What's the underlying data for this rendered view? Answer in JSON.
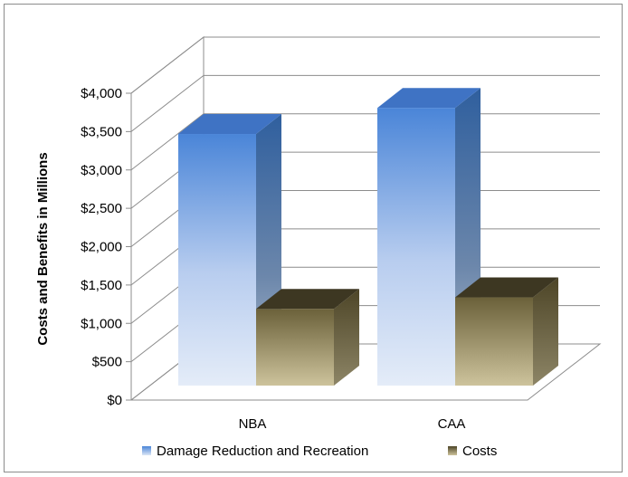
{
  "chart_data": {
    "type": "bar",
    "categories": [
      "NBA",
      "CAA"
    ],
    "series": [
      {
        "name": "Damage Reduction and Recreation",
        "values": [
          3280,
          3620
        ],
        "color": "#4f81bd"
      },
      {
        "name": "Costs",
        "values": [
          1000,
          1150
        ],
        "color": "#7a7150"
      }
    ],
    "ylabel": "Costs and Benefits in Millions",
    "xlabel": "",
    "ylim": [
      0,
      4000
    ],
    "yticks": [
      0,
      500,
      1000,
      1500,
      2000,
      2500,
      3000,
      3500,
      4000
    ],
    "ytick_labels": [
      "$0",
      "$500",
      "$1,000",
      "$1,500",
      "$2,000",
      "$2,500",
      "$3,000",
      "$3,500",
      "$4,000"
    ],
    "grid": true,
    "legend_position": "bottom",
    "style": "3d-column"
  }
}
